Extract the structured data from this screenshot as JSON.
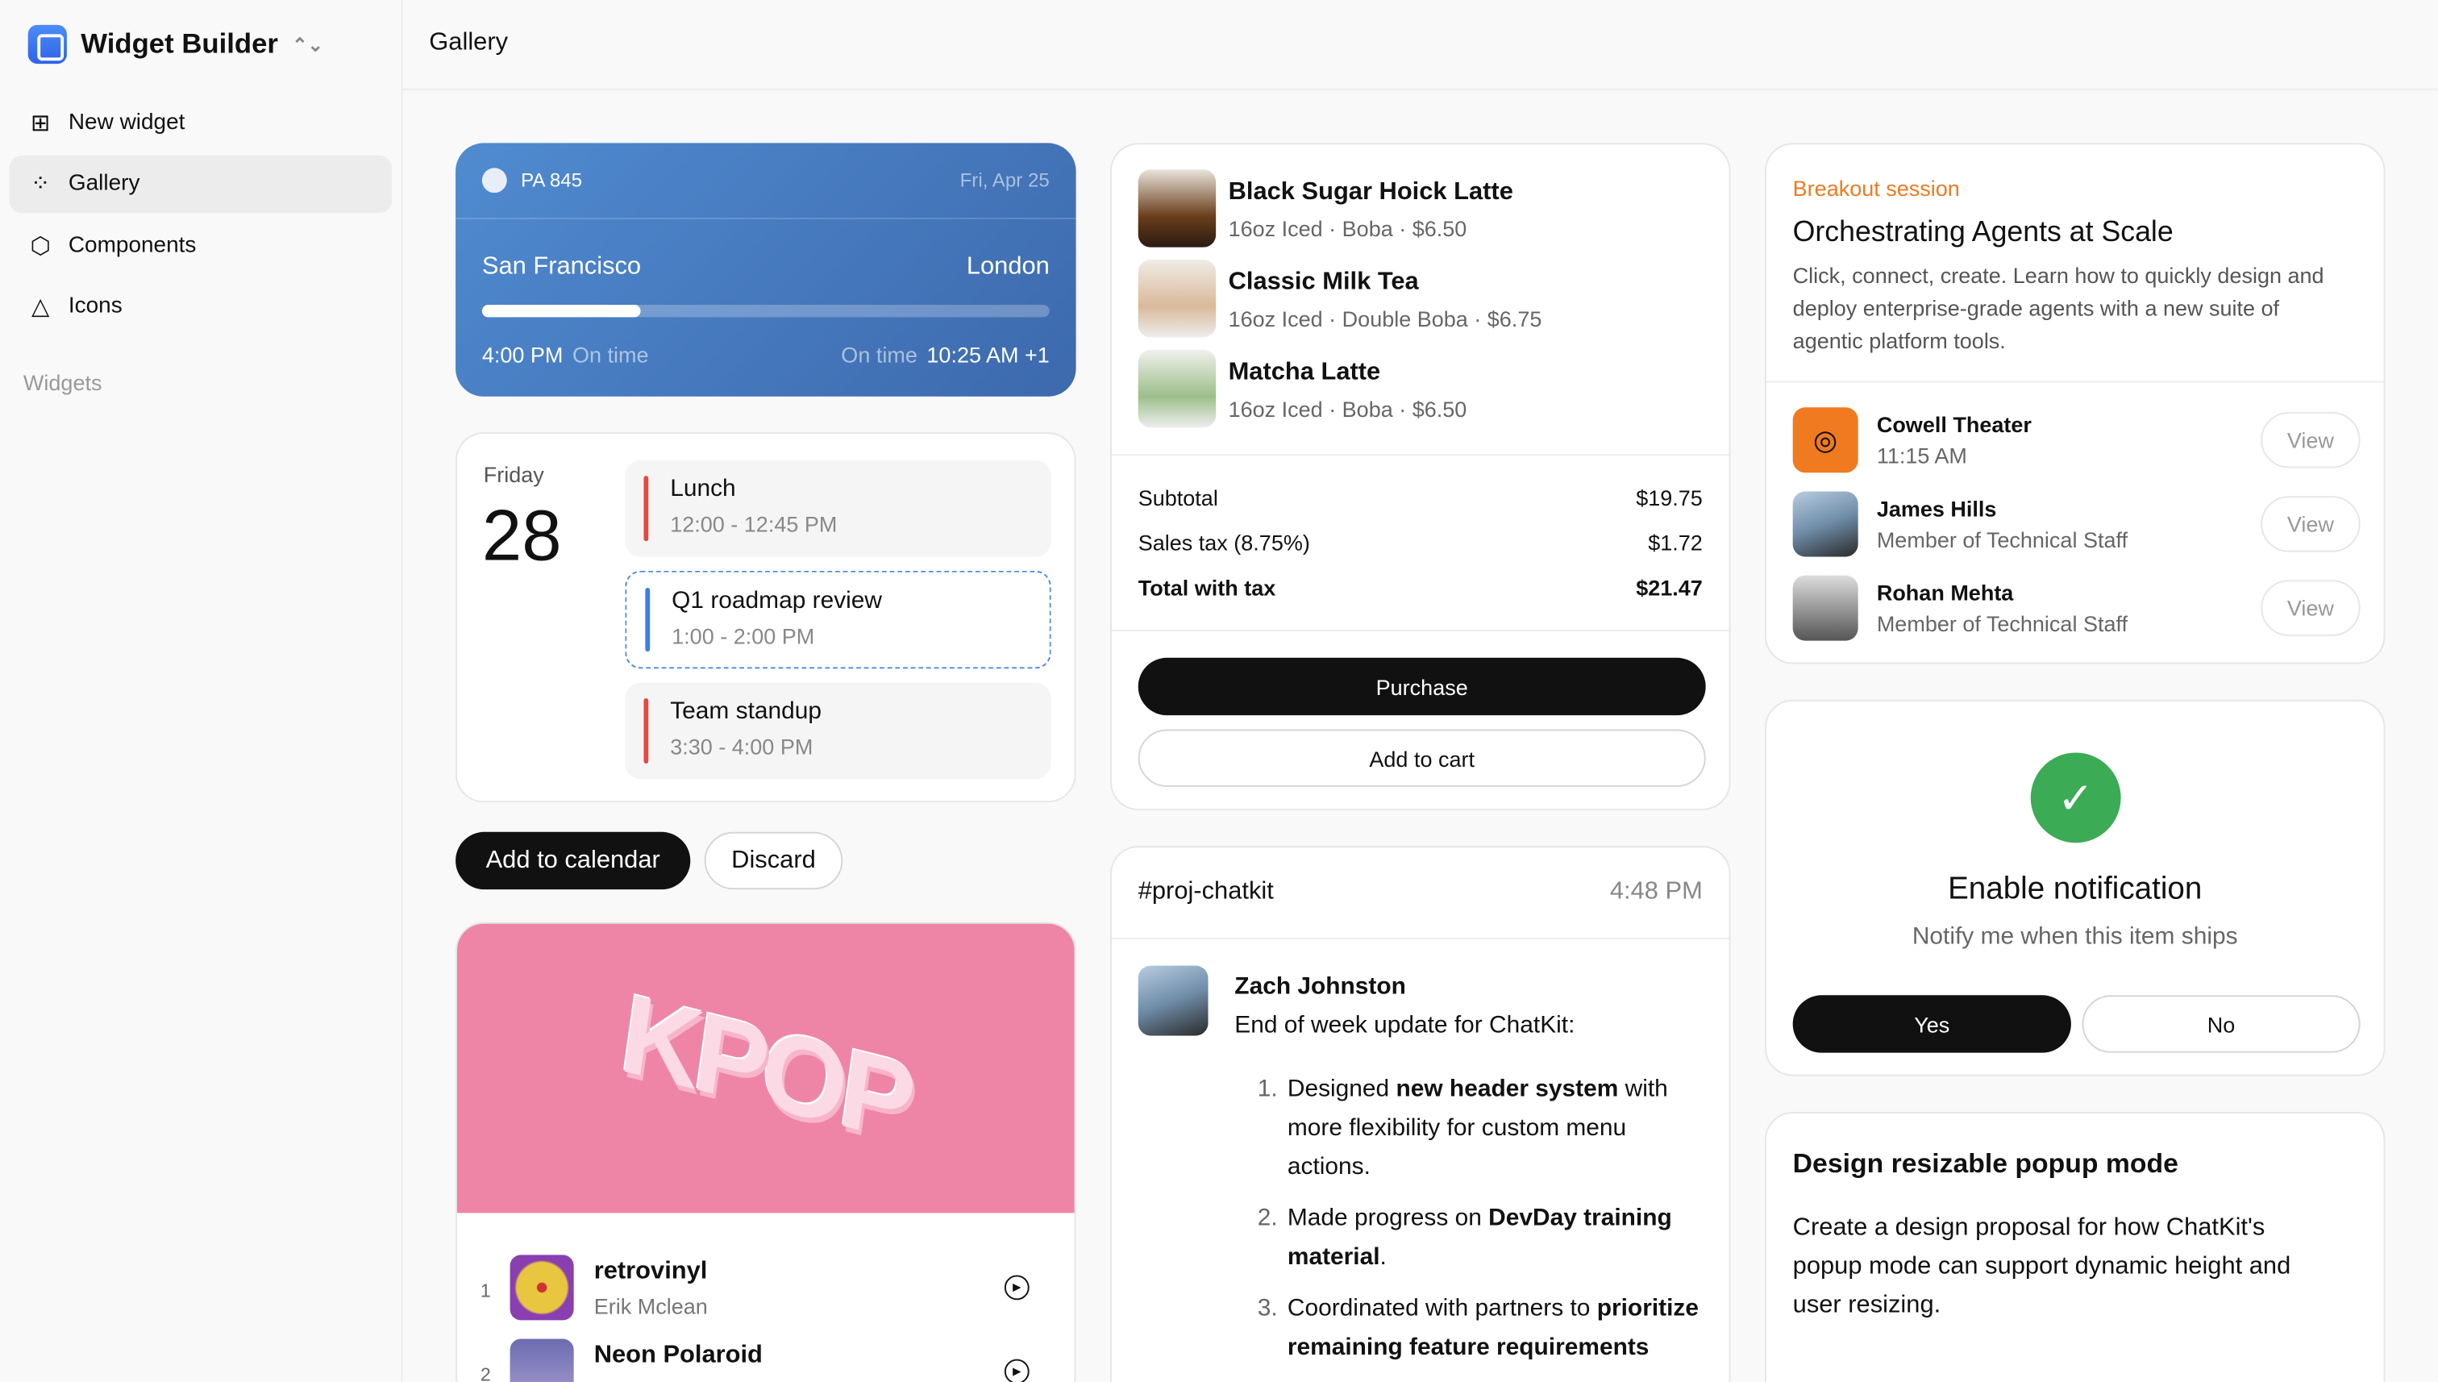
{
  "app": {
    "title": "Widget Builder",
    "icon": "widget-logo-icon"
  },
  "sidebar": {
    "items": [
      {
        "label": "New widget",
        "icon": "plus-square-icon"
      },
      {
        "label": "Gallery",
        "icon": "grid-icon",
        "active": true
      },
      {
        "label": "Components",
        "icon": "cube-icon"
      },
      {
        "label": "Icons",
        "icon": "shapes-icon"
      }
    ],
    "section": "Widgets"
  },
  "header": {
    "title": "Gallery"
  },
  "flight": {
    "number": "PA 845",
    "date": "Fri, Apr 25",
    "from": "San Francisco",
    "to": "London",
    "progress_percent": 28,
    "depart_time": "4:00 PM",
    "depart_status": "On time",
    "arrive_status": "On time",
    "arrive_time": "10:25 AM +1"
  },
  "calendar": {
    "day": "Friday",
    "date": "28",
    "events": [
      {
        "title": "Lunch",
        "time": "12:00 - 12:45 PM",
        "color": "#e5483f"
      },
      {
        "title": "Q1 roadmap review",
        "time": "1:00 - 2:00 PM",
        "color": "#3b7de9"
      },
      {
        "title": "Team standup",
        "time": "3:30 - 4:00 PM",
        "color": "#e5483f"
      }
    ],
    "add_label": "Add to calendar",
    "discard_label": "Discard"
  },
  "playlist": {
    "cover_text": "KPOP",
    "tracks": [
      {
        "n": "1",
        "title": "retrovinyl",
        "artist": "Erik Mclean"
      },
      {
        "n": "2",
        "title": "Neon Polaroid",
        "artist": ""
      }
    ]
  },
  "order": {
    "items": [
      {
        "name": "Black Sugar Hoick Latte",
        "detail": "16oz Iced · Boba · $6.50"
      },
      {
        "name": "Classic Milk Tea",
        "detail": "16oz Iced · Double Boba · $6.75"
      },
      {
        "name": "Matcha Latte",
        "detail": "16oz Iced · Boba · $6.50"
      }
    ],
    "subtotal_label": "Subtotal",
    "subtotal": "$19.75",
    "tax_label": "Sales tax (8.75%)",
    "tax": "$1.72",
    "total_label": "Total with tax",
    "total": "$21.47",
    "purchase_label": "Purchase",
    "cart_label": "Add to cart"
  },
  "chat": {
    "channel": "#proj-chatkit",
    "time": "4:48 PM",
    "author": "Zach Johnston",
    "intro": "End of week update for ChatKit:",
    "items": [
      {
        "a": "Designed ",
        "b": "new header system",
        "c": " with more flexibility for custom menu actions."
      },
      {
        "a": "Made progress on ",
        "b": "DevDay training material",
        "c": "."
      },
      {
        "a": "Coordinated with partners to ",
        "b": "prioritize remaining feature requirements",
        "c": ""
      }
    ]
  },
  "session": {
    "tag": "Breakout session",
    "title": "Orchestrating Agents at Scale",
    "description": "Click, connect, create. Learn how to quickly design and deploy enterprise-grade agents with a new suite of agentic platform tools.",
    "people": [
      {
        "name": "Cowell Theater",
        "sub": "11:15 AM"
      },
      {
        "name": "James Hills",
        "sub": "Member of Technical Staff"
      },
      {
        "name": "Rohan Mehta",
        "sub": "Member of Technical Staff"
      }
    ],
    "view_label": "View",
    "accent": "#f07a20"
  },
  "notification": {
    "title": "Enable notification",
    "subtitle": "Notify me when this item ships",
    "yes": "Yes",
    "no": "No"
  },
  "task": {
    "title": "Design resizable popup mode",
    "description": "Create a design proposal for how ChatKit's popup mode can support dynamic height and user resizing."
  }
}
